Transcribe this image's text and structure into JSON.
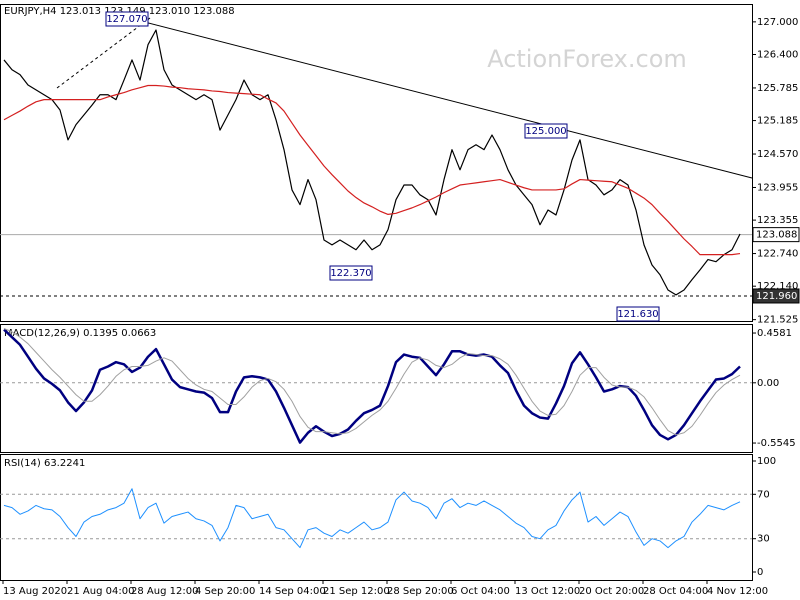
{
  "chart_data": [
    {
      "type": "line",
      "title": "EURJPY,H4 123.013 123.149 123.010 123.088",
      "watermark": "ActionForex.com",
      "ylim": [
        121.5,
        127.31
      ],
      "yticks": [
        {
          "value": 127,
          "label": "127.000"
        },
        {
          "value": 126.4,
          "label": "126.400"
        },
        {
          "value": 125.785,
          "label": "125.785"
        },
        {
          "value": 125.185,
          "label": "125.185"
        },
        {
          "value": 124.57,
          "label": "124.570"
        },
        {
          "value": 123.955,
          "label": "123.955"
        },
        {
          "value": 123.355,
          "label": "123.355"
        },
        {
          "value": 122.74,
          "label": "122.740"
        },
        {
          "value": 122.14,
          "label": "122.140"
        },
        {
          "value": 121.525,
          "label": "121.525"
        }
      ],
      "price_lines": [
        {
          "value": 123.088,
          "label": "123.088"
        },
        {
          "value": 121.96,
          "label": "121.960"
        }
      ],
      "annotations": [
        "127.070",
        "125.000",
        "122.370",
        "121.630"
      ],
      "series": [
        {
          "name": "EURJPY",
          "color": "#000000",
          "values": [
            126.3,
            126.12,
            126.03,
            125.84,
            125.75,
            125.66,
            125.57,
            125.38,
            124.83,
            125.11,
            125.29,
            125.47,
            125.66,
            125.66,
            125.57,
            125.93,
            126.3,
            125.93,
            126.58,
            126.85,
            126.12,
            125.84,
            125.75,
            125.66,
            125.57,
            125.66,
            125.57,
            125.01,
            125.29,
            125.57,
            125.93,
            125.66,
            125.57,
            125.66,
            125.2,
            124.65,
            123.91,
            123.64,
            124.1,
            123.73,
            122.99,
            122.9,
            122.99,
            122.9,
            122.81,
            122.99,
            122.81,
            122.9,
            123.18,
            123.73,
            124.0,
            124.0,
            123.82,
            123.73,
            123.45,
            124.1,
            124.65,
            124.28,
            124.65,
            124.74,
            124.65,
            124.92,
            124.65,
            124.28,
            124.0,
            123.82,
            123.64,
            123.27,
            123.54,
            123.45,
            123.91,
            124.46,
            124.83,
            124.1,
            124.0,
            123.82,
            123.91,
            124.1,
            124.0,
            123.54,
            122.9,
            122.53,
            122.35,
            122.07,
            121.98,
            122.07,
            122.26,
            122.44,
            122.63,
            122.59,
            122.72,
            122.81,
            123.1
          ]
        },
        {
          "name": "MA",
          "color": "#d42020",
          "values": [
            125.2,
            125.28,
            125.36,
            125.45,
            125.53,
            125.57,
            125.57,
            125.57,
            125.57,
            125.57,
            125.57,
            125.57,
            125.57,
            125.62,
            125.66,
            125.7,
            125.75,
            125.79,
            125.83,
            125.83,
            125.82,
            125.8,
            125.79,
            125.77,
            125.76,
            125.75,
            125.73,
            125.72,
            125.7,
            125.69,
            125.68,
            125.67,
            125.66,
            125.58,
            125.51,
            125.36,
            125.14,
            124.92,
            124.73,
            124.54,
            124.35,
            124.19,
            124.04,
            123.89,
            123.77,
            123.67,
            123.6,
            123.52,
            123.46,
            123.48,
            123.53,
            123.58,
            123.64,
            123.71,
            123.78,
            123.86,
            123.93,
            124.0,
            124.02,
            124.04,
            124.06,
            124.08,
            124.1,
            124.05,
            124.0,
            123.95,
            123.91,
            123.91,
            123.91,
            123.91,
            123.93,
            124.02,
            124.1,
            124.09,
            124.08,
            124.07,
            124.06,
            124.0,
            123.94,
            123.85,
            123.76,
            123.64,
            123.48,
            123.33,
            123.17,
            123.01,
            122.87,
            122.72,
            122.72,
            122.72,
            122.72,
            122.72,
            122.74
          ]
        }
      ]
    },
    {
      "type": "line",
      "title": "MACD(12,26,9) 0.1395 0.0663",
      "ylim": [
        -0.637,
        0.532
      ],
      "yticks": [
        0.4581,
        {
          "value": 0,
          "label": "0.00"
        },
        -0.5545
      ],
      "levels": [
        0
      ],
      "series": [
        {
          "name": "MACD",
          "color": "#000080",
          "values": [
            0.49,
            0.42,
            0.35,
            0.24,
            0.13,
            0.04,
            -0.01,
            -0.07,
            -0.18,
            -0.26,
            -0.18,
            -0.07,
            0.12,
            0.15,
            0.19,
            0.17,
            0.1,
            0.14,
            0.24,
            0.31,
            0.17,
            0.03,
            -0.04,
            -0.06,
            -0.08,
            -0.09,
            -0.14,
            -0.27,
            -0.27,
            -0.08,
            0.05,
            0.06,
            0.05,
            0.03,
            -0.08,
            -0.23,
            -0.39,
            -0.55,
            -0.46,
            -0.4,
            -0.45,
            -0.49,
            -0.47,
            -0.43,
            -0.35,
            -0.28,
            -0.25,
            -0.21,
            -0.03,
            0.19,
            0.26,
            0.24,
            0.23,
            0.15,
            0.07,
            0.17,
            0.29,
            0.29,
            0.26,
            0.25,
            0.26,
            0.24,
            0.16,
            0.09,
            -0.07,
            -0.21,
            -0.28,
            -0.32,
            -0.33,
            -0.19,
            -0.03,
            0.18,
            0.28,
            0.17,
            0.05,
            -0.08,
            -0.06,
            -0.03,
            -0.04,
            -0.12,
            -0.25,
            -0.39,
            -0.48,
            -0.52,
            -0.48,
            -0.39,
            -0.28,
            -0.17,
            -0.07,
            0.03,
            0.04,
            0.08,
            0.15
          ]
        },
        {
          "name": "Signal",
          "color": "#a0a0a0",
          "values": [
            0.5,
            0.47,
            0.42,
            0.36,
            0.28,
            0.2,
            0.12,
            0.05,
            -0.03,
            -0.11,
            -0.17,
            -0.17,
            -0.11,
            -0.03,
            0.06,
            0.12,
            0.15,
            0.15,
            0.16,
            0.2,
            0.23,
            0.2,
            0.12,
            0.04,
            -0.02,
            -0.06,
            -0.08,
            -0.14,
            -0.2,
            -0.2,
            -0.13,
            -0.04,
            0.02,
            0.04,
            0.01,
            -0.06,
            -0.17,
            -0.31,
            -0.41,
            -0.45,
            -0.45,
            -0.46,
            -0.47,
            -0.46,
            -0.42,
            -0.36,
            -0.3,
            -0.25,
            -0.17,
            -0.05,
            0.08,
            0.19,
            0.23,
            0.21,
            0.16,
            0.14,
            0.17,
            0.23,
            0.27,
            0.26,
            0.25,
            0.25,
            0.22,
            0.17,
            0.07,
            -0.05,
            -0.17,
            -0.26,
            -0.3,
            -0.29,
            -0.21,
            -0.08,
            0.07,
            0.14,
            0.14,
            0.05,
            -0.02,
            -0.04,
            -0.04,
            -0.07,
            -0.13,
            -0.23,
            -0.34,
            -0.44,
            -0.48,
            -0.46,
            -0.4,
            -0.3,
            -0.19,
            -0.09,
            -0.02,
            0.03,
            0.07
          ]
        }
      ]
    },
    {
      "type": "line",
      "title": "RSI(14) 63.2241",
      "ylim": [
        -7.2,
        105.4
      ],
      "yticks": [
        100,
        70,
        30,
        0
      ],
      "levels": [
        70,
        30
      ],
      "categories": [
        "13 Aug 2020",
        null,
        null,
        null,
        null,
        null,
        null,
        null,
        "21 Aug 04:00",
        null,
        null,
        null,
        null,
        null,
        null,
        null,
        "28 Aug 12:00",
        null,
        null,
        null,
        null,
        null,
        null,
        null,
        "4 Sep 20:00",
        null,
        null,
        null,
        null,
        null,
        null,
        null,
        "14 Sep 04:00",
        null,
        null,
        null,
        null,
        null,
        null,
        null,
        "21 Sep 12:00",
        null,
        null,
        null,
        null,
        null,
        null,
        null,
        "28 Sep 20:00",
        null,
        null,
        null,
        null,
        null,
        null,
        null,
        "6 Oct 04:00",
        null,
        null,
        null,
        null,
        null,
        null,
        null,
        "13 Oct 12:00",
        null,
        null,
        null,
        null,
        null,
        null,
        null,
        "20 Oct 20:00",
        null,
        null,
        null,
        null,
        null,
        null,
        null,
        "28 Oct 04:00",
        null,
        null,
        null,
        null,
        null,
        null,
        null,
        "4 Nov 12:00",
        null,
        null,
        null,
        null
      ],
      "series": [
        {
          "name": "RSI",
          "color": "#1e90ff",
          "values": [
            60,
            58,
            52,
            55,
            60,
            57,
            56,
            50,
            40,
            32,
            45,
            50,
            52,
            56,
            58,
            62,
            75,
            48,
            58,
            62,
            44,
            50,
            52,
            54,
            48,
            46,
            42,
            28,
            40,
            60,
            58,
            48,
            50,
            52,
            40,
            38,
            30,
            22,
            38,
            40,
            35,
            32,
            38,
            35,
            40,
            45,
            38,
            40,
            45,
            65,
            72,
            64,
            62,
            58,
            48,
            62,
            66,
            58,
            62,
            60,
            64,
            60,
            56,
            50,
            44,
            40,
            32,
            30,
            38,
            42,
            55,
            65,
            72,
            45,
            50,
            42,
            48,
            54,
            50,
            36,
            24,
            30,
            28,
            22,
            28,
            32,
            45,
            52,
            60,
            58,
            56,
            60,
            63.2241
          ]
        }
      ]
    }
  ]
}
